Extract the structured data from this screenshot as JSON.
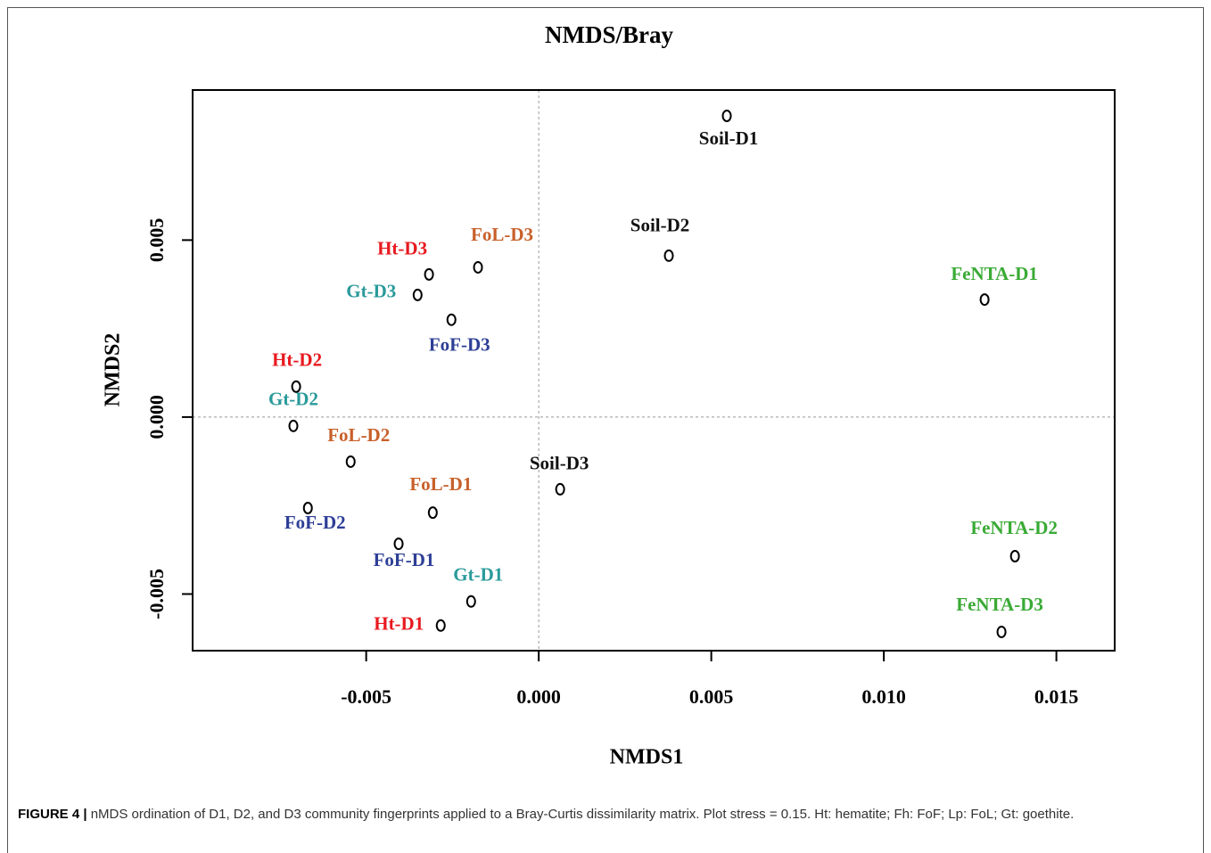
{
  "chart_data": {
    "type": "scatter",
    "title": "NMDS/Bray",
    "x_label": "NMDS1",
    "y_label": "NMDS2",
    "xlim": [
      -0.01003,
      0.01669
    ],
    "ylim": [
      -0.0066,
      0.00924
    ],
    "xticks": [
      -0.005,
      {
        "value": 0,
        "label": "0.000"
      },
      0.005,
      {
        "value": 0.01,
        "label": "0.010"
      },
      0.015
    ],
    "yticks": [
      -0.005,
      {
        "value": 0,
        "label": "0.000"
      },
      0.005
    ],
    "hline": 0,
    "vline": 0,
    "marker_color": "#000000",
    "points": [
      {
        "label": "Soil-D1",
        "x": 0.00545,
        "y": 0.00851,
        "color": "#111111"
      },
      {
        "label": "Soil-D2",
        "x": 0.00377,
        "y": 0.00456,
        "color": "#111111"
      },
      {
        "label": "FeNTA-D1",
        "x": 0.01292,
        "y": 0.00332,
        "color": "#3aaa35"
      },
      {
        "label": "Ht-D3",
        "x": -0.00318,
        "y": 0.00403,
        "color": "#e8191f"
      },
      {
        "label": "FoL-D3",
        "x": -0.00176,
        "y": 0.00423,
        "color": "#c8602a"
      },
      {
        "label": "Gt-D3",
        "x": -0.00351,
        "y": 0.00345,
        "color": "#2a9a9a"
      },
      {
        "label": "FoF-D3",
        "x": -0.00253,
        "y": 0.00275,
        "color": "#2e3f96"
      },
      {
        "label": "Ht-D2",
        "x": -0.00703,
        "y": 0.00086,
        "color": "#e8191f"
      },
      {
        "label": "Gt-D2",
        "x": -0.00711,
        "y": -0.00025,
        "color": "#2a9a9a"
      },
      {
        "label": "FoL-D2",
        "x": -0.00545,
        "y": -0.00126,
        "color": "#c8602a"
      },
      {
        "label": "Soil-D3",
        "x": 0.00062,
        "y": -0.00204,
        "color": "#111111"
      },
      {
        "label": "FoL-D1",
        "x": -0.00307,
        "y": -0.0027,
        "color": "#c8602a"
      },
      {
        "label": "FoF-D2",
        "x": -0.00669,
        "y": -0.00257,
        "color": "#2e3f96"
      },
      {
        "label": "FoF-D1",
        "x": -0.00406,
        "y": -0.00358,
        "color": "#2e3f96"
      },
      {
        "label": "Gt-D1",
        "x": -0.00196,
        "y": -0.00521,
        "color": "#2a9a9a"
      },
      {
        "label": "Ht-D1",
        "x": -0.00284,
        "y": -0.00589,
        "color": "#e8191f"
      },
      {
        "label": "FeNTA-D2",
        "x": 0.0138,
        "y": -0.00393,
        "color": "#3aaa35"
      },
      {
        "label": "FeNTA-D3",
        "x": 0.01341,
        "y": -0.00607,
        "color": "#3aaa35"
      }
    ]
  },
  "caption": {
    "figure_label": "FIGURE 4 |",
    "text": "nMDS ordination of D1, D2, and D3 community fingerprints applied to a Bray-Curtis dissimilarity matrix. Plot stress = 0.15. Ht: hematite; Fh: FoF; Lp: FoL; Gt: goethite."
  }
}
